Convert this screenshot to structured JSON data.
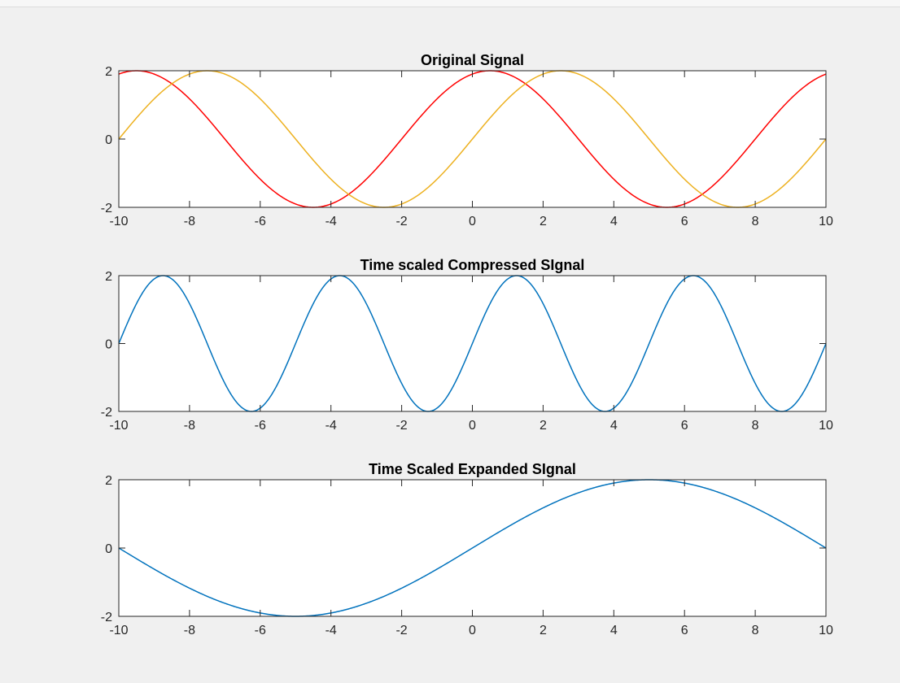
{
  "colors": {
    "axis": "#262626",
    "plot_background": "#ffffff",
    "figure_background": "#f0f0f0",
    "red": "#ff0000",
    "yellow": "#edb120",
    "blue": "#0072bd"
  },
  "chart_data": [
    {
      "type": "line",
      "title": "Original Signal",
      "xlim": [
        -10,
        10
      ],
      "ylim": [
        -2,
        2
      ],
      "xticks": [
        -10,
        -8,
        -6,
        -4,
        -2,
        0,
        2,
        4,
        6,
        8,
        10
      ],
      "yticks": [
        -2,
        0,
        2
      ],
      "series": [
        {
          "color": "red",
          "function": "2*cos(0.6283*(t-0.5))",
          "x_samples": [
            -10,
            -9.5,
            -7,
            -4.5,
            -2,
            0.5,
            3,
            5.5,
            8,
            10
          ],
          "y_samples": [
            1.9,
            2,
            0,
            -2,
            0,
            2,
            0,
            -2,
            0,
            1.9
          ]
        },
        {
          "color": "yellow",
          "function": "2*sin(0.6283*t)",
          "x_samples": [
            -10,
            -7.5,
            -5,
            -2.5,
            0,
            2.5,
            5,
            7.5,
            10
          ],
          "y_samples": [
            0,
            2,
            0,
            -2,
            0,
            2,
            0,
            -2,
            0
          ]
        }
      ]
    },
    {
      "type": "line",
      "title": "Time scaled Compressed SIgnal",
      "xlim": [
        -10,
        10
      ],
      "ylim": [
        -2,
        2
      ],
      "xticks": [
        -10,
        -8,
        -6,
        -4,
        -2,
        0,
        2,
        4,
        6,
        8,
        10
      ],
      "yticks": [
        -2,
        0,
        2
      ],
      "series": [
        {
          "color": "blue",
          "function": "2*sin(1.2566*t)",
          "x_samples": [
            -10,
            -8.75,
            -6.25,
            -3.75,
            -1.25,
            1.25,
            3.75,
            6.25,
            8.75,
            10
          ],
          "y_samples": [
            0,
            2,
            -2,
            2,
            -2,
            2,
            -2,
            2,
            -2,
            0
          ]
        }
      ]
    },
    {
      "type": "line",
      "title": "Time Scaled Expanded SIgnal",
      "xlim": [
        -10,
        10
      ],
      "ylim": [
        -2,
        2
      ],
      "xticks": [
        -10,
        -8,
        -6,
        -4,
        -2,
        0,
        2,
        4,
        6,
        8,
        10
      ],
      "yticks": [
        -2,
        0,
        2
      ],
      "series": [
        {
          "color": "blue",
          "function": "2*sin(0.31416*t)",
          "x_samples": [
            -10,
            -5,
            0,
            5,
            10
          ],
          "y_samples": [
            0,
            -2,
            0,
            2,
            0
          ]
        }
      ]
    }
  ]
}
